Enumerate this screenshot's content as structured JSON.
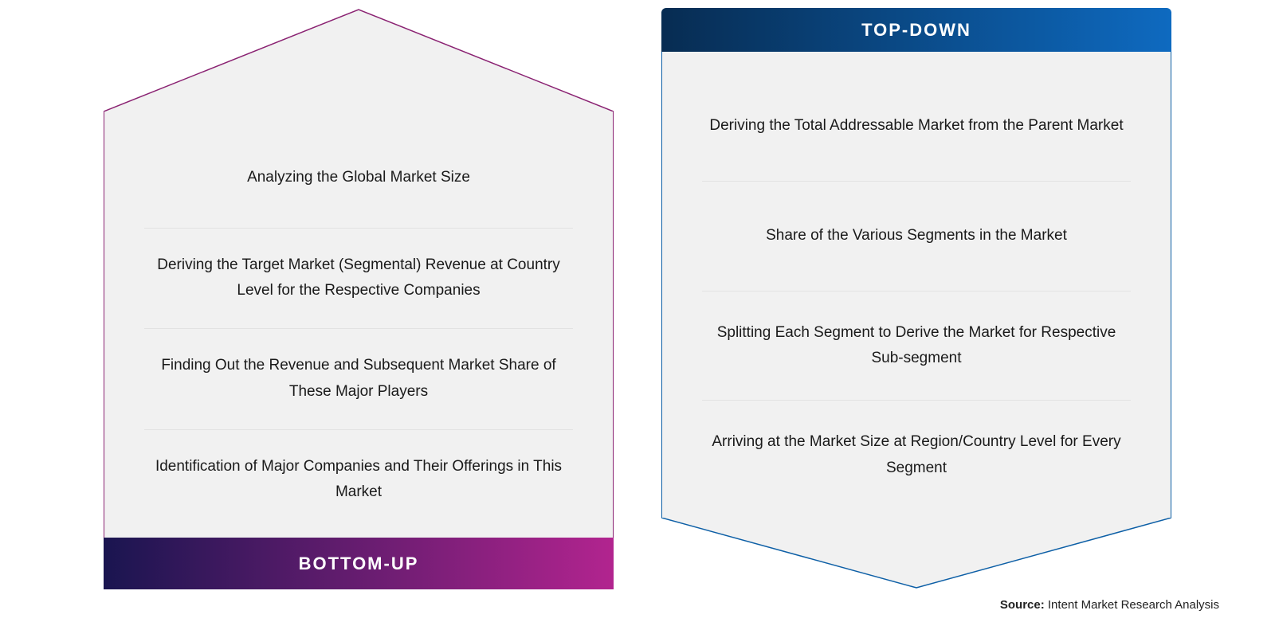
{
  "left": {
    "title": "BOTTOM-UP",
    "border_color": "#8a2272",
    "body_bg": "#f1f1f1",
    "title_gradient_from": "#1a1550",
    "title_gradient_to": "#b2248f",
    "items": [
      "Analyzing the Global Market Size",
      "Deriving the Target Market (Segmental) Revenue at Country Level for the Respective Companies",
      "Finding Out the Revenue and Subsequent Market Share of These Major Players",
      "Identification of Major Companies and Their Offerings in This Market"
    ]
  },
  "right": {
    "title": "TOP-DOWN",
    "border_color": "#0d5fa6",
    "body_bg": "#f1f1f1",
    "title_gradient_from": "#072c52",
    "title_gradient_to": "#0e6ac0",
    "items": [
      "Deriving the Total Addressable Market from the Parent Market",
      "Share of the Various Segments in the Market",
      "Splitting Each Segment to Derive the Market for Respective Sub-segment",
      "Arriving at the Market Size at Region/Country Level for Every Segment"
    ]
  },
  "source_label": "Source:",
  "source_text": "Intent Market Research Analysis",
  "text_color": "#1a1a1a",
  "divider_color": "#e2e2e2",
  "item_fontsize": 19,
  "title_fontsize": 22
}
